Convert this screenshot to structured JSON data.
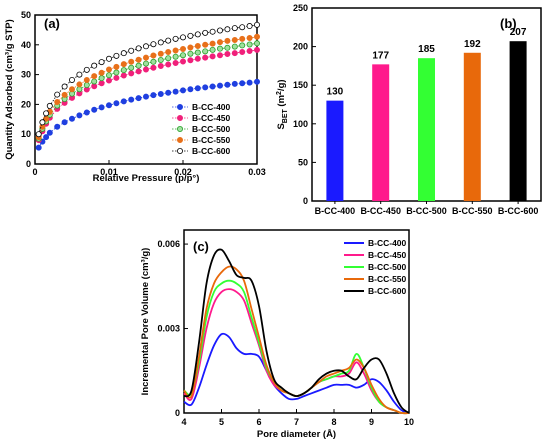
{
  "chart_data": [
    {
      "panel_label": "(a)",
      "type": "scatter",
      "xlabel": "Relative Pressure (p/p°)",
      "ylabel": "Quantity Adsorbed (cm³/g STP)",
      "xlim": [
        0,
        0.03
      ],
      "ylim": [
        0,
        50
      ],
      "x_ticks": [
        0,
        0.01,
        0.02,
        0.03
      ],
      "x_tick_labels": [
        "0",
        "0.01",
        "0.02",
        "0.03"
      ],
      "y_ticks": [
        0,
        10,
        20,
        30,
        40,
        50
      ],
      "y_tick_labels": [
        "0",
        "10",
        "20",
        "30",
        "40",
        "50"
      ],
      "legend_position": "bottom-right",
      "series": [
        {
          "name": "B-CC-400",
          "color": "#1f3fe0",
          "marker": "filled",
          "x": [
            0.0005,
            0.001,
            0.0015,
            0.002,
            0.003,
            0.004,
            0.005,
            0.006,
            0.007,
            0.008,
            0.009,
            0.01,
            0.011,
            0.012,
            0.013,
            0.014,
            0.015,
            0.016,
            0.017,
            0.018,
            0.019,
            0.02,
            0.021,
            0.022,
            0.023,
            0.024,
            0.025,
            0.026,
            0.027,
            0.028,
            0.029,
            0.03
          ],
          "y": [
            5.5,
            7.5,
            9.0,
            10.5,
            12.5,
            14.0,
            15.2,
            16.3,
            17.3,
            18.2,
            19.0,
            19.7,
            20.4,
            21.0,
            21.6,
            22.1,
            22.6,
            23.1,
            23.5,
            23.9,
            24.3,
            24.7,
            25.1,
            25.4,
            25.7,
            26.0,
            26.3,
            26.6,
            26.9,
            27.1,
            27.3,
            27.6
          ]
        },
        {
          "name": "B-CC-450",
          "color": "#f0207a",
          "marker": "filled",
          "x": [
            0.0005,
            0.001,
            0.0015,
            0.002,
            0.003,
            0.004,
            0.005,
            0.006,
            0.007,
            0.008,
            0.009,
            0.01,
            0.011,
            0.012,
            0.013,
            0.014,
            0.015,
            0.016,
            0.017,
            0.018,
            0.019,
            0.02,
            0.021,
            0.022,
            0.023,
            0.024,
            0.025,
            0.026,
            0.027,
            0.028,
            0.029,
            0.03
          ],
          "y": [
            8.0,
            11.0,
            13.5,
            15.5,
            18.5,
            20.5,
            22.2,
            23.7,
            25.0,
            26.1,
            27.1,
            28.0,
            28.9,
            29.7,
            30.4,
            31.1,
            31.7,
            32.3,
            32.9,
            33.4,
            33.9,
            34.4,
            34.8,
            35.3,
            35.7,
            36.1,
            36.5,
            36.9,
            37.2,
            37.6,
            37.9,
            38.3
          ]
        },
        {
          "name": "B-CC-500",
          "color": "#2aa02a",
          "marker": "filled-light",
          "x": [
            0.0005,
            0.001,
            0.0015,
            0.002,
            0.003,
            0.004,
            0.005,
            0.006,
            0.007,
            0.008,
            0.009,
            0.01,
            0.011,
            0.012,
            0.013,
            0.014,
            0.015,
            0.016,
            0.017,
            0.018,
            0.019,
            0.02,
            0.021,
            0.022,
            0.023,
            0.024,
            0.025,
            0.026,
            0.027,
            0.028,
            0.029,
            0.03
          ],
          "y": [
            8.5,
            11.8,
            14.3,
            16.5,
            19.6,
            21.8,
            23.6,
            25.1,
            26.5,
            27.7,
            28.8,
            29.8,
            30.7,
            31.5,
            32.3,
            33.0,
            33.7,
            34.3,
            34.9,
            35.5,
            36.0,
            36.5,
            37.0,
            37.4,
            37.8,
            38.3,
            38.7,
            39.0,
            39.4,
            39.8,
            40.1,
            40.5
          ]
        },
        {
          "name": "B-CC-550",
          "color": "#e8701a",
          "marker": "filled",
          "x": [
            0.0005,
            0.001,
            0.0015,
            0.002,
            0.003,
            0.004,
            0.005,
            0.006,
            0.007,
            0.008,
            0.009,
            0.01,
            0.011,
            0.012,
            0.013,
            0.014,
            0.015,
            0.016,
            0.017,
            0.018,
            0.019,
            0.02,
            0.021,
            0.022,
            0.023,
            0.024,
            0.025,
            0.026,
            0.027,
            0.028,
            0.029,
            0.03
          ],
          "y": [
            9.0,
            12.5,
            15.2,
            17.5,
            20.8,
            23.2,
            25.1,
            26.7,
            28.2,
            29.5,
            30.6,
            31.7,
            32.6,
            33.5,
            34.3,
            35.0,
            35.7,
            36.4,
            37.0,
            37.6,
            38.1,
            38.6,
            39.1,
            39.6,
            40.0,
            40.4,
            40.9,
            41.3,
            41.6,
            42.0,
            42.3,
            42.7
          ]
        },
        {
          "name": "B-CC-600",
          "color": "#000000",
          "marker": "open",
          "x": [
            0.0005,
            0.001,
            0.0015,
            0.002,
            0.003,
            0.004,
            0.005,
            0.006,
            0.007,
            0.008,
            0.009,
            0.01,
            0.011,
            0.012,
            0.013,
            0.014,
            0.015,
            0.016,
            0.017,
            0.018,
            0.019,
            0.02,
            0.021,
            0.022,
            0.023,
            0.024,
            0.025,
            0.026,
            0.027,
            0.028,
            0.029,
            0.03
          ],
          "y": [
            10.0,
            14.0,
            17.0,
            19.5,
            23.3,
            26.0,
            28.2,
            30.0,
            31.6,
            33.0,
            34.2,
            35.3,
            36.3,
            37.2,
            38.0,
            38.8,
            39.5,
            40.2,
            40.8,
            41.4,
            42.0,
            42.5,
            43.0,
            43.5,
            44.0,
            44.4,
            44.8,
            45.2,
            45.6,
            45.9,
            46.3,
            46.7
          ]
        }
      ]
    },
    {
      "panel_label": "(b)",
      "type": "bar",
      "ylabel": "S_BET (m²/g)",
      "ylabel_main": "S",
      "ylabel_sub": "BET",
      "ylabel_rest": " (m",
      "ylabel_sup": "2",
      "ylabel_end": "/g)",
      "ylim": [
        0,
        250
      ],
      "y_ticks": [
        0,
        50,
        100,
        150,
        200,
        250
      ],
      "y_tick_labels": [
        "0",
        "50",
        "100",
        "150",
        "200",
        "250"
      ],
      "categories": [
        "B-CC-400",
        "B-CC-450",
        "B-CC-500",
        "B-CC-550",
        "B-CC-600"
      ],
      "values": [
        130,
        177,
        185,
        192,
        207
      ],
      "value_labels": [
        "130",
        "177",
        "185",
        "192",
        "207"
      ],
      "colors": [
        "#1a1aff",
        "#ff1a8c",
        "#33ff33",
        "#e8690b",
        "#000000"
      ]
    },
    {
      "panel_label": "(c)",
      "type": "line",
      "xlabel": "Pore diameter (Å)",
      "ylabel": "Incremental Pore Volume (cm³/g)",
      "xlim": [
        4,
        10
      ],
      "ylim": [
        0,
        0.0065
      ],
      "x_ticks": [
        4,
        5,
        6,
        7,
        8,
        9,
        10
      ],
      "x_tick_labels": [
        "4",
        "5",
        "6",
        "7",
        "8",
        "9",
        "10"
      ],
      "y_ticks": [
        0,
        0.003,
        0.006
      ],
      "y_tick_labels": [
        "0",
        "0.003",
        "0.006"
      ],
      "legend_position": "top-right",
      "x": [
        4.0,
        4.2,
        4.4,
        4.6,
        4.8,
        5.0,
        5.2,
        5.4,
        5.6,
        5.8,
        6.0,
        6.2,
        6.4,
        6.6,
        6.8,
        7.0,
        7.2,
        7.4,
        7.6,
        7.8,
        8.0,
        8.2,
        8.4,
        8.6,
        8.8,
        9.0,
        9.2,
        9.4,
        9.6,
        9.8,
        10.0
      ],
      "series": [
        {
          "name": "B-CC-400",
          "color": "#1a1aff",
          "values": [
            0.0004,
            0.0003,
            0.0009,
            0.0017,
            0.0024,
            0.0028,
            0.0027,
            0.0023,
            0.0021,
            0.0021,
            0.002,
            0.0015,
            0.001,
            0.0007,
            0.0005,
            0.0005,
            0.0006,
            0.0007,
            0.0008,
            0.0009,
            0.001,
            0.001,
            0.001,
            0.0009,
            0.001,
            0.0012,
            0.0011,
            0.0008,
            0.0004,
            0.0001,
            0.0
          ]
        },
        {
          "name": "B-CC-450",
          "color": "#ff1a8c",
          "values": [
            0.0007,
            0.0005,
            0.0016,
            0.003,
            0.0039,
            0.0043,
            0.0044,
            0.0043,
            0.004,
            0.0032,
            0.0024,
            0.0015,
            0.001,
            0.0008,
            0.0007,
            0.0006,
            0.0007,
            0.0009,
            0.0011,
            0.0012,
            0.0013,
            0.0013,
            0.0014,
            0.0018,
            0.0014,
            0.0008,
            0.0004,
            0.0002,
            0.0001,
            0.0,
            0.0
          ]
        },
        {
          "name": "B-CC-500",
          "color": "#33ff33",
          "values": [
            0.0008,
            0.0007,
            0.0018,
            0.0034,
            0.0043,
            0.0046,
            0.0047,
            0.0046,
            0.0043,
            0.0034,
            0.0025,
            0.0016,
            0.0011,
            0.0008,
            0.0007,
            0.0006,
            0.0007,
            0.0009,
            0.0011,
            0.0012,
            0.0013,
            0.0014,
            0.0015,
            0.0021,
            0.0016,
            0.0009,
            0.0004,
            0.0002,
            0.0001,
            0.0,
            0.0
          ]
        },
        {
          "name": "B-CC-550",
          "color": "#e8690b",
          "values": [
            0.0008,
            0.0006,
            0.002,
            0.0037,
            0.0046,
            0.005,
            0.0052,
            0.0051,
            0.0047,
            0.0037,
            0.0027,
            0.0017,
            0.0011,
            0.0008,
            0.0007,
            0.0006,
            0.0007,
            0.0009,
            0.0011,
            0.0013,
            0.0014,
            0.0015,
            0.0016,
            0.0019,
            0.0016,
            0.001,
            0.0005,
            0.0002,
            0.0001,
            0.0,
            0.0
          ]
        },
        {
          "name": "B-CC-600",
          "color": "#000000",
          "values": [
            0.0006,
            0.0008,
            0.0025,
            0.0046,
            0.0056,
            0.0058,
            0.0054,
            0.0049,
            0.0048,
            0.0047,
            0.0038,
            0.0022,
            0.0012,
            0.0009,
            0.0007,
            0.0006,
            0.0007,
            0.0009,
            0.0012,
            0.0014,
            0.0015,
            0.0015,
            0.0013,
            0.0012,
            0.0016,
            0.0019,
            0.0019,
            0.0014,
            0.0007,
            0.0002,
            0.0
          ]
        }
      ]
    }
  ]
}
